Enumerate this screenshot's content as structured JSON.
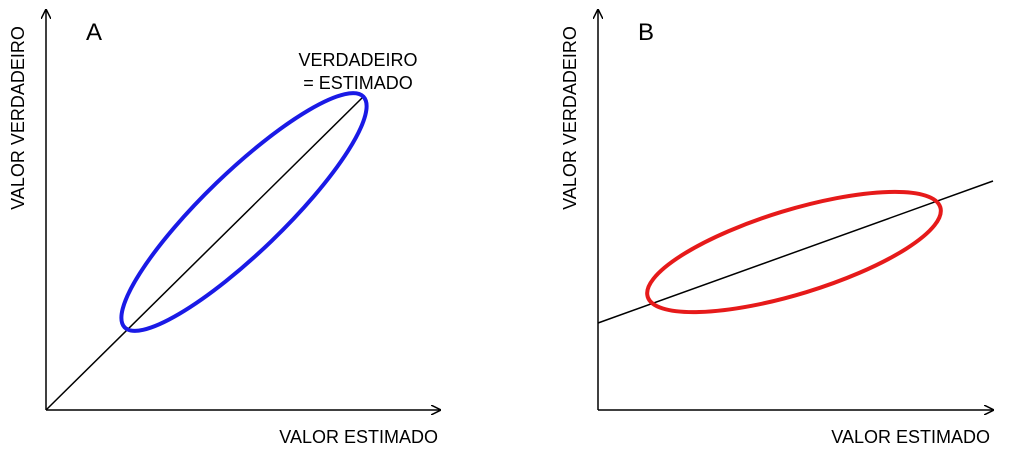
{
  "panels": [
    {
      "label": "A",
      "y_axis_label": "VALOR VERDADEIRO",
      "x_axis_label": "VALOR ESTIMADO",
      "annotation": [
        "VERDADEIRO",
        "= ESTIMADO"
      ]
    },
    {
      "label": "B",
      "y_axis_label": "VALOR VERDADEIRO",
      "x_axis_label": "VALOR ESTIMADO"
    }
  ]
}
